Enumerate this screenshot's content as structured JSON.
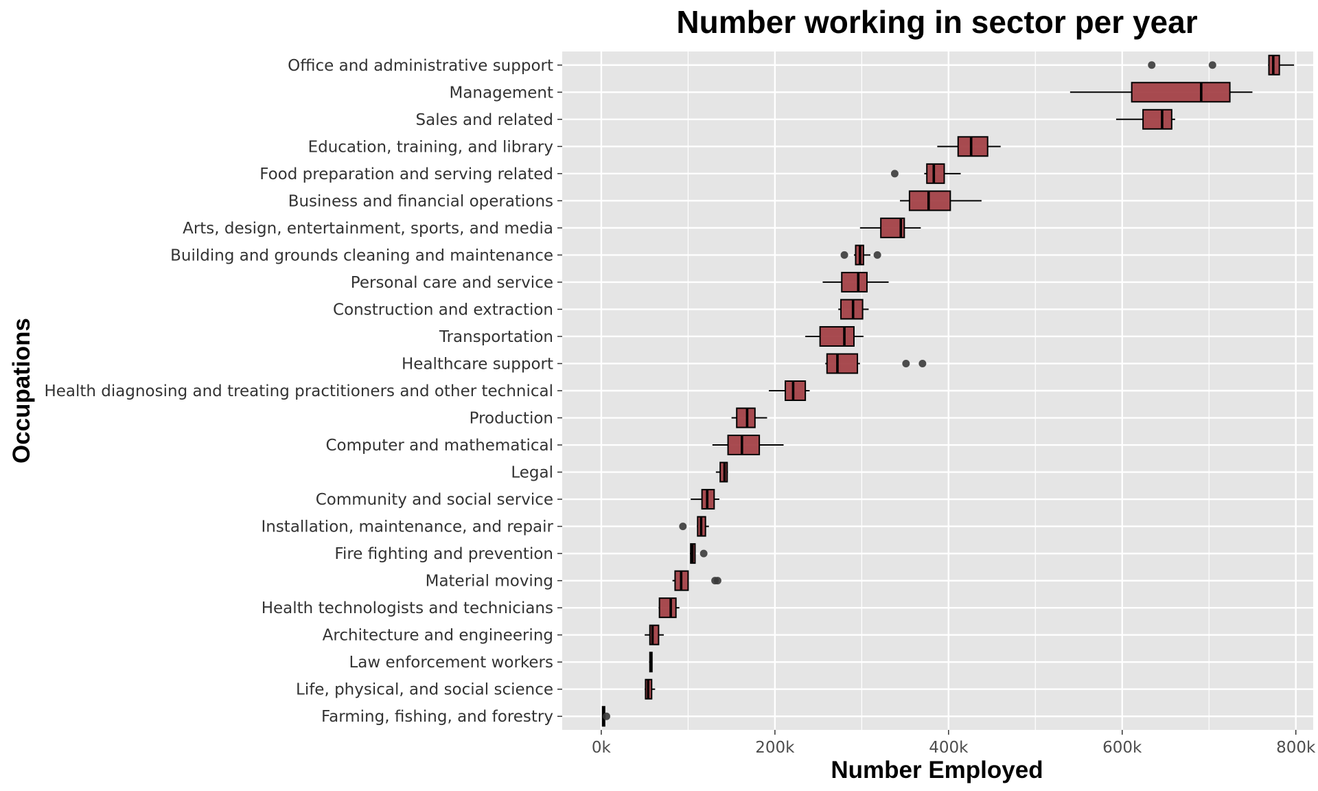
{
  "chart_data": {
    "type": "boxplot",
    "orientation": "horizontal",
    "title": "Number working in sector per year",
    "xlabel": "Number Employed",
    "ylabel": "Occupations",
    "xlim": [
      -45000,
      820000
    ],
    "xticks": [
      0,
      200000,
      400000,
      600000,
      800000
    ],
    "xtick_labels": [
      "0k",
      "200k",
      "400k",
      "600k",
      "800k"
    ],
    "grid": true,
    "legend": "none",
    "colors": {
      "panel_bg": "#e5e5e5",
      "grid": "#ffffff",
      "box_fill": "#a0393e",
      "outline": "#000000",
      "outlier": "#3a3a3a"
    },
    "categories": [
      {
        "name": "Office and administrative support",
        "whisker_low": 768000,
        "q1": 769000,
        "median": 774000,
        "q3": 781000,
        "whisker_high": 798000,
        "outliers": [
          634000,
          704000
        ]
      },
      {
        "name": "Management",
        "whisker_low": 540000,
        "q1": 611000,
        "median": 691000,
        "q3": 724000,
        "whisker_high": 750000,
        "outliers": []
      },
      {
        "name": "Sales and related",
        "whisker_low": 593000,
        "q1": 624000,
        "median": 646000,
        "q3": 657000,
        "whisker_high": 661000,
        "outliers": []
      },
      {
        "name": "Education, training, and library",
        "whisker_low": 387000,
        "q1": 411000,
        "median": 426000,
        "q3": 445000,
        "whisker_high": 460000,
        "outliers": []
      },
      {
        "name": "Food preparation and serving related",
        "whisker_low": 372000,
        "q1": 375000,
        "median": 383000,
        "q3": 395000,
        "whisker_high": 414000,
        "outliers": [
          338000
        ]
      },
      {
        "name": "Business and financial operations",
        "whisker_low": 344000,
        "q1": 355000,
        "median": 377000,
        "q3": 402000,
        "whisker_high": 438000,
        "outliers": []
      },
      {
        "name": "Arts, design, entertainment, sports, and media",
        "whisker_low": 298000,
        "q1": 322000,
        "median": 345000,
        "q3": 349000,
        "whisker_high": 368000,
        "outliers": []
      },
      {
        "name": "Building and grounds cleaning and maintenance",
        "whisker_low": 291000,
        "q1": 293000,
        "median": 298000,
        "q3": 302000,
        "whisker_high": 310000,
        "outliers": [
          280000,
          318000
        ]
      },
      {
        "name": "Personal care and service",
        "whisker_low": 255000,
        "q1": 277000,
        "median": 296000,
        "q3": 306000,
        "whisker_high": 331000,
        "outliers": []
      },
      {
        "name": "Construction and extraction",
        "whisker_low": 273000,
        "q1": 276000,
        "median": 290000,
        "q3": 301000,
        "whisker_high": 308000,
        "outliers": []
      },
      {
        "name": "Transportation",
        "whisker_low": 235000,
        "q1": 252000,
        "median": 280000,
        "q3": 291000,
        "whisker_high": 302000,
        "outliers": []
      },
      {
        "name": "Healthcare support",
        "whisker_low": 258000,
        "q1": 260000,
        "median": 272000,
        "q3": 295000,
        "whisker_high": 298000,
        "outliers": [
          351000,
          370000
        ]
      },
      {
        "name": "Health diagnosing and treating practitioners and other technical",
        "whisker_low": 193000,
        "q1": 212000,
        "median": 221000,
        "q3": 235000,
        "whisker_high": 240000,
        "outliers": []
      },
      {
        "name": "Production",
        "whisker_low": 150000,
        "q1": 156000,
        "median": 168000,
        "q3": 177000,
        "whisker_high": 191000,
        "outliers": []
      },
      {
        "name": "Computer and mathematical",
        "whisker_low": 128000,
        "q1": 146000,
        "median": 162000,
        "q3": 182000,
        "whisker_high": 210000,
        "outliers": []
      },
      {
        "name": "Legal",
        "whisker_low": 132000,
        "q1": 137000,
        "median": 142000,
        "q3": 145000,
        "whisker_high": 146000,
        "outliers": []
      },
      {
        "name": "Community and social service",
        "whisker_low": 103000,
        "q1": 116000,
        "median": 122000,
        "q3": 130000,
        "whisker_high": 136000,
        "outliers": []
      },
      {
        "name": "Installation, maintenance, and repair",
        "whisker_low": 110000,
        "q1": 111000,
        "median": 115000,
        "q3": 120000,
        "whisker_high": 124000,
        "outliers": [
          94000
        ]
      },
      {
        "name": "Fire fighting and prevention",
        "whisker_low": 102000,
        "q1": 103000,
        "median": 105000,
        "q3": 108000,
        "whisker_high": 108000,
        "outliers": [
          118000
        ]
      },
      {
        "name": "Material moving",
        "whisker_low": 82000,
        "q1": 85000,
        "median": 92000,
        "q3": 100000,
        "whisker_high": 100000,
        "outliers": [
          131000,
          134000
        ]
      },
      {
        "name": "Health technologists and technicians",
        "whisker_low": 66000,
        "q1": 67000,
        "median": 80000,
        "q3": 86000,
        "whisker_high": 90000,
        "outliers": []
      },
      {
        "name": "Architecture and engineering",
        "whisker_low": 50000,
        "q1": 56000,
        "median": 59000,
        "q3": 66000,
        "whisker_high": 72000,
        "outliers": []
      },
      {
        "name": "Law enforcement workers",
        "whisker_low": 55000,
        "q1": 56000,
        "median": 57000,
        "q3": 58000,
        "whisker_high": 59000,
        "outliers": []
      },
      {
        "name": "Life, physical, and social science",
        "whisker_low": 50000,
        "q1": 51000,
        "median": 54000,
        "q3": 58000,
        "whisker_high": 62000,
        "outliers": []
      },
      {
        "name": "Farming, fishing, and forestry",
        "whisker_low": 1000,
        "q1": 1500,
        "median": 2500,
        "q3": 3500,
        "whisker_high": 5000,
        "outliers": [
          6000
        ]
      }
    ]
  }
}
